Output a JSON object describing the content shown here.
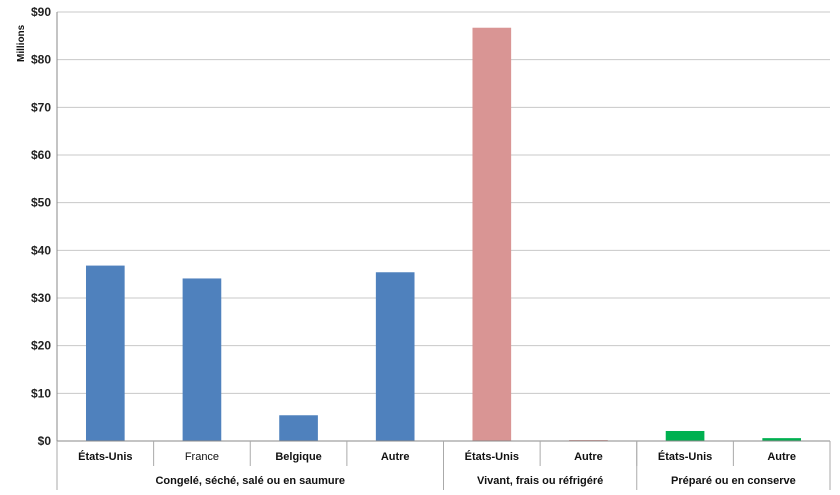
{
  "chart_data": {
    "type": "bar",
    "ylabel": "Millions",
    "ylim": [
      0,
      90
    ],
    "yticks": [
      "$0",
      "$10",
      "$20",
      "$30",
      "$40",
      "$50",
      "$60",
      "$70",
      "$80",
      "$90"
    ],
    "grid": true,
    "categories": [
      "États-Unis",
      "France",
      "Belgique",
      "Autre",
      "États-Unis",
      "Autre",
      "États-Unis",
      "Autre"
    ],
    "category_bold": [
      true,
      false,
      true,
      true,
      true,
      true,
      true,
      true
    ],
    "values": [
      36.8,
      34.1,
      5.4,
      35.4,
      86.7,
      0.2,
      2.1,
      0.6
    ],
    "groups": [
      {
        "label": "Congelé, séché, salé ou en saumure",
        "count": 4,
        "color": "#4f81bd"
      },
      {
        "label": "Vivant, frais ou réfrigéré",
        "count": 2,
        "color": "#d99594"
      },
      {
        "label": "Préparé ou en conserve",
        "count": 2,
        "color": "#00b050"
      }
    ]
  }
}
